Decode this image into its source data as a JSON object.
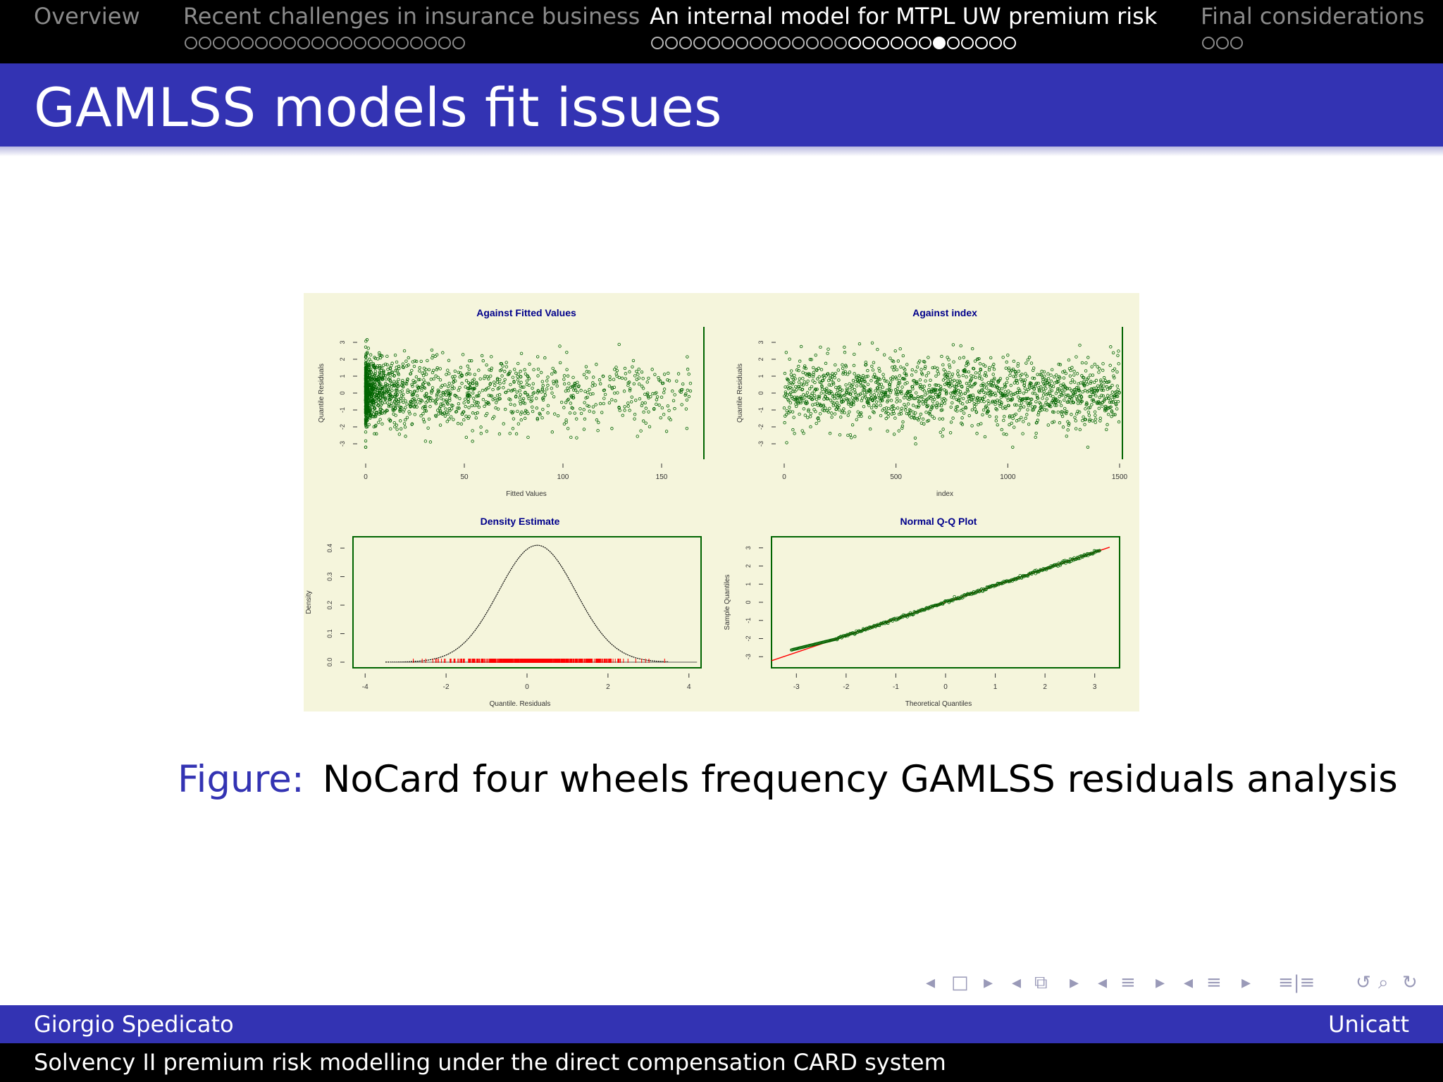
{
  "nav": {
    "sections": [
      {
        "label": "Overview",
        "dots": 0,
        "active": false,
        "current_dot": -1,
        "seen": 0
      },
      {
        "label": "Recent challenges in insurance business",
        "dots": 20,
        "active": false,
        "current_dot": -1,
        "seen": 20
      },
      {
        "label": "An internal model for MTPL UW premium risk",
        "dots": 26,
        "active": true,
        "current_dot": 20,
        "seen": 14
      },
      {
        "label": "Final considerations",
        "dots": 3,
        "active": false,
        "current_dot": -1,
        "seen": 3
      }
    ]
  },
  "slide": {
    "title": "GAMLSS models fit issues"
  },
  "figure": {
    "label": "Figure:",
    "caption": "NoCard four wheels frequency GAMLSS residuals analysis",
    "background": "#f5f5dc",
    "point_color": "#006400",
    "line_color": "#ff0000",
    "title_color": "#00008b"
  },
  "chart_data": [
    {
      "type": "scatter",
      "title": "Against Fitted Values",
      "xlabel": "Fitted Values",
      "ylabel": "Quantile Residuals",
      "xlim": [
        0,
        170
      ],
      "ylim": [
        -3.5,
        3.5
      ],
      "xticks": [
        "0",
        "50",
        "100",
        "150"
      ],
      "yticks": [
        "-3",
        "-2",
        "-1",
        "0",
        "1",
        "2",
        "3"
      ],
      "n_points": 1500,
      "description_distribution": "dense near 0 fitted values, spreading to 170"
    },
    {
      "type": "scatter",
      "title": "Against index",
      "xlabel": "index",
      "ylabel": "Quantile Residuals",
      "xlim": [
        0,
        1500
      ],
      "ylim": [
        -3.5,
        3.5
      ],
      "xticks": [
        "0",
        "500",
        "1000",
        "1500"
      ],
      "yticks": [
        "-3",
        "-2",
        "-1",
        "0",
        "1",
        "2",
        "3"
      ],
      "n_points": 1500
    },
    {
      "type": "line",
      "title": "Density Estimate",
      "xlabel": "Quantile. Residuals",
      "ylabel": "Density",
      "xlim": [
        -4.3,
        4.3
      ],
      "ylim": [
        0,
        0.42
      ],
      "xticks": [
        "-4",
        "-2",
        "0",
        "2",
        "4"
      ],
      "yticks": [
        "0.0",
        "0.1",
        "0.2",
        "0.3",
        "0.4"
      ],
      "curve": {
        "mean": 0.25,
        "sd": 0.95,
        "peak": 0.41
      }
    },
    {
      "type": "scatter",
      "title": "Normal Q-Q Plot",
      "xlabel": "Theoretical Quantiles",
      "ylabel": "Sample Quantiles",
      "xlim": [
        -3.5,
        3.5
      ],
      "ylim": [
        -3.3,
        3.3
      ],
      "xticks": [
        "-3",
        "-2",
        "-1",
        "0",
        "1",
        "2",
        "3"
      ],
      "yticks": [
        "-3",
        "-2",
        "-1",
        "0",
        "1",
        "2",
        "3"
      ],
      "reference_line": {
        "intercept": 0,
        "slope": 0.92
      }
    }
  ],
  "navigation_symbols": [
    "◂",
    "□",
    "▸",
    "◂",
    "⧉",
    "▸",
    "◂",
    "≡",
    "▸",
    "◂",
    "≡",
    "▸",
    "≡|≡",
    "↺",
    "⌕",
    "↻"
  ],
  "footer": {
    "author": "Giorgio Spedicato",
    "institute": "Unicatt",
    "talk_title": "Solvency II premium risk modelling under the direct compensation CARD system"
  }
}
